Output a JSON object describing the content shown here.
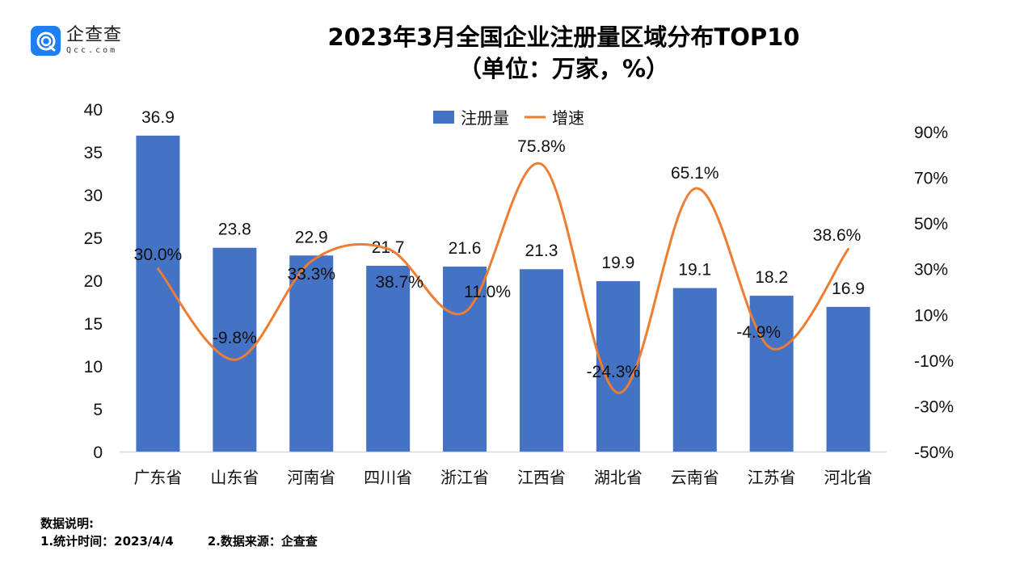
{
  "logo": {
    "icon": "qcc-logo-icon",
    "name": "企查查",
    "domain": "Qcc.com"
  },
  "notes": {
    "heading": "数据说明:",
    "item1": "1.统计时间：2023/4/4",
    "item2": "2.数据来源：企查查"
  },
  "colors": {
    "bar": "#4472c4",
    "line": "#ed7d31",
    "axis_line": "#d9d9d9",
    "logo": "#1f7ef0"
  },
  "chart_data": {
    "type": "bar",
    "title": "2023年3月全国企业注册量区域分布TOP10",
    "subtitle": "（单位：万家，%）",
    "categories": [
      "广东省",
      "山东省",
      "河南省",
      "四川省",
      "浙江省",
      "江西省",
      "湖北省",
      "云南省",
      "江苏省",
      "河北省"
    ],
    "series": [
      {
        "name": "注册量",
        "type": "bar",
        "axis": "left",
        "values": [
          36.9,
          23.8,
          22.9,
          21.7,
          21.6,
          21.3,
          19.9,
          19.1,
          18.2,
          16.9
        ],
        "labels": [
          "36.9",
          "23.8",
          "22.9",
          "21.7",
          "21.6",
          "21.3",
          "19.9",
          "19.1",
          "18.2",
          "16.9"
        ]
      },
      {
        "name": "增速",
        "type": "line",
        "smooth": true,
        "axis": "right",
        "values": [
          30.0,
          -9.8,
          33.3,
          38.7,
          11.0,
          75.8,
          -24.3,
          65.1,
          -4.9,
          38.6
        ],
        "labels": [
          "30.0%",
          "-9.8%",
          "33.3%",
          "38.7%",
          "11.0%",
          "75.8%",
          "-24.3%",
          "65.1%",
          "-4.9%",
          "38.6%"
        ]
      }
    ],
    "y_left": {
      "min": 0,
      "max": 40,
      "step": 5,
      "ticks": [
        "0",
        "5",
        "10",
        "15",
        "20",
        "25",
        "30",
        "35",
        "40"
      ]
    },
    "y_right": {
      "min": -50,
      "max": 90,
      "step": 20,
      "ticks": [
        "-50%",
        "-30%",
        "-10%",
        "10%",
        "30%",
        "50%",
        "70%",
        "90%"
      ]
    },
    "xlabel": "",
    "ylabel": "",
    "grid": false,
    "legend": {
      "position": "top-center",
      "entries": [
        "注册量",
        "增速"
      ]
    }
  }
}
